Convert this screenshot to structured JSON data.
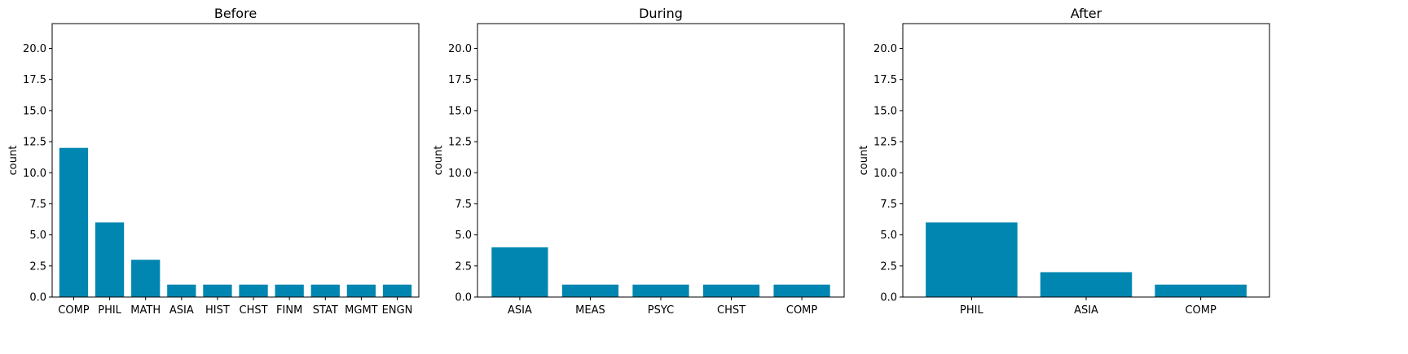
{
  "style": {
    "bar_color": "#0086B0",
    "axis_color": "#000000",
    "background": "#FFFFFF"
  },
  "chart_data": [
    {
      "type": "bar",
      "title": "Before",
      "xlabel": "",
      "ylabel": "count",
      "ylim": [
        0,
        22
      ],
      "yticks": [
        0.0,
        2.5,
        5.0,
        7.5,
        10.0,
        12.5,
        15.0,
        17.5,
        20.0
      ],
      "ytick_labels": [
        "0.0",
        "2.5",
        "5.0",
        "7.5",
        "10.0",
        "12.5",
        "15.0",
        "17.5",
        "20.0"
      ],
      "categories": [
        "COMP",
        "PHIL",
        "MATH",
        "ASIA",
        "HIST",
        "CHST",
        "FINM",
        "STAT",
        "MGMT",
        "ENGN"
      ],
      "values": [
        12,
        6,
        3,
        1,
        1,
        1,
        1,
        1,
        1,
        1
      ],
      "grid": false,
      "legend": "none"
    },
    {
      "type": "bar",
      "title": "During",
      "xlabel": "",
      "ylabel": "count",
      "ylim": [
        0,
        22
      ],
      "yticks": [
        0.0,
        2.5,
        5.0,
        7.5,
        10.0,
        12.5,
        15.0,
        17.5,
        20.0
      ],
      "ytick_labels": [
        "0.0",
        "2.5",
        "5.0",
        "7.5",
        "10.0",
        "12.5",
        "15.0",
        "17.5",
        "20.0"
      ],
      "categories": [
        "ASIA",
        "MEAS",
        "PSYC",
        "CHST",
        "COMP"
      ],
      "values": [
        4,
        1,
        1,
        1,
        1
      ],
      "grid": false,
      "legend": "none"
    },
    {
      "type": "bar",
      "title": "After",
      "xlabel": "",
      "ylabel": "count",
      "ylim": [
        0,
        22
      ],
      "yticks": [
        0.0,
        2.5,
        5.0,
        7.5,
        10.0,
        12.5,
        15.0,
        17.5,
        20.0
      ],
      "ytick_labels": [
        "0.0",
        "2.5",
        "5.0",
        "7.5",
        "10.0",
        "12.5",
        "15.0",
        "17.5",
        "20.0"
      ],
      "categories": [
        "PHIL",
        "ASIA",
        "COMP"
      ],
      "values": [
        6,
        2,
        1
      ],
      "grid": false,
      "legend": "none"
    }
  ]
}
